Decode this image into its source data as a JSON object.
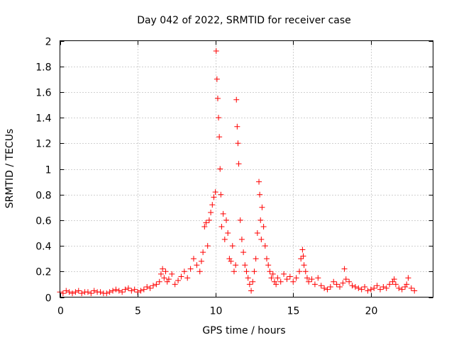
{
  "chart_data": {
    "type": "scatter",
    "title": "Day 042 of 2022, SRMTID for receiver case",
    "xlabel": "GPS time / hours",
    "ylabel": "SRMTID / TECUs",
    "xlim": [
      0,
      24
    ],
    "ylim": [
      0,
      2
    ],
    "xticks": [
      "0",
      "5",
      "10",
      "15",
      "20"
    ],
    "xtick_values": [
      0,
      5,
      10,
      15,
      20
    ],
    "yticks": [
      "0",
      "0.2",
      "0.4",
      "0.6",
      "0.8",
      "1",
      "1.2",
      "1.4",
      "1.6",
      "1.8",
      "2"
    ],
    "ytick_values": [
      0,
      0.2,
      0.4,
      0.6,
      0.8,
      1.0,
      1.2,
      1.4,
      1.6,
      1.8,
      2.0
    ],
    "grid": true,
    "marker": "+",
    "color": "#ff0000",
    "series": [
      {
        "name": "SRMTID",
        "x": [
          0.0,
          0.2,
          0.4,
          0.6,
          0.8,
          1.0,
          1.2,
          1.4,
          1.6,
          1.8,
          2.0,
          2.2,
          2.4,
          2.6,
          2.8,
          3.0,
          3.2,
          3.4,
          3.6,
          3.8,
          4.0,
          4.2,
          4.4,
          4.6,
          4.8,
          5.0,
          5.2,
          5.4,
          5.6,
          5.8,
          6.0,
          6.2,
          6.4,
          6.5,
          6.6,
          6.7,
          6.8,
          6.9,
          7.0,
          7.2,
          7.4,
          7.6,
          7.8,
          8.0,
          8.2,
          8.4,
          8.6,
          8.8,
          9.0,
          9.1,
          9.2,
          9.3,
          9.4,
          9.5,
          9.6,
          9.7,
          9.8,
          9.9,
          10.0,
          10.05,
          10.1,
          10.15,
          10.2,
          10.25,
          10.3,
          10.35,
          10.4,
          10.5,
          10.6,
          10.7,
          10.8,
          10.9,
          11.0,
          11.1,
          11.2,
          11.3,
          11.35,
          11.4,
          11.45,
          11.5,
          11.6,
          11.7,
          11.8,
          11.9,
          12.0,
          12.1,
          12.2,
          12.3,
          12.4,
          12.5,
          12.6,
          12.7,
          12.8,
          12.85,
          12.9,
          12.95,
          13.0,
          13.1,
          13.2,
          13.3,
          13.4,
          13.5,
          13.6,
          13.7,
          13.8,
          13.9,
          14.0,
          14.2,
          14.4,
          14.6,
          14.8,
          15.0,
          15.2,
          15.4,
          15.5,
          15.6,
          15.65,
          15.7,
          15.8,
          15.9,
          16.0,
          16.2,
          16.4,
          16.6,
          16.8,
          17.0,
          17.2,
          17.4,
          17.6,
          17.8,
          18.0,
          18.2,
          18.3,
          18.4,
          18.6,
          18.8,
          19.0,
          19.2,
          19.4,
          19.6,
          19.8,
          20.0,
          20.2,
          20.4,
          20.6,
          20.8,
          21.0,
          21.2,
          21.4,
          21.5,
          21.6,
          21.8,
          22.0,
          22.2,
          22.3,
          22.4,
          22.6,
          22.8
        ],
        "y": [
          0.04,
          0.03,
          0.05,
          0.04,
          0.03,
          0.04,
          0.05,
          0.03,
          0.04,
          0.04,
          0.03,
          0.05,
          0.04,
          0.04,
          0.03,
          0.03,
          0.04,
          0.05,
          0.06,
          0.05,
          0.04,
          0.06,
          0.07,
          0.05,
          0.06,
          0.04,
          0.05,
          0.06,
          0.08,
          0.07,
          0.09,
          0.1,
          0.12,
          0.18,
          0.22,
          0.15,
          0.2,
          0.12,
          0.14,
          0.18,
          0.1,
          0.13,
          0.16,
          0.2,
          0.15,
          0.22,
          0.3,
          0.25,
          0.2,
          0.28,
          0.35,
          0.55,
          0.58,
          0.4,
          0.6,
          0.66,
          0.72,
          0.78,
          0.82,
          1.92,
          1.7,
          1.55,
          1.4,
          1.25,
          1.0,
          0.8,
          0.55,
          0.65,
          0.45,
          0.6,
          0.5,
          0.3,
          0.28,
          0.4,
          0.2,
          0.25,
          1.54,
          1.33,
          1.2,
          1.04,
          0.6,
          0.45,
          0.35,
          0.25,
          0.2,
          0.15,
          0.1,
          0.05,
          0.12,
          0.2,
          0.3,
          0.5,
          0.9,
          0.8,
          0.6,
          0.45,
          0.7,
          0.55,
          0.4,
          0.3,
          0.25,
          0.2,
          0.15,
          0.18,
          0.12,
          0.1,
          0.15,
          0.12,
          0.18,
          0.14,
          0.16,
          0.12,
          0.15,
          0.2,
          0.3,
          0.37,
          0.32,
          0.25,
          0.2,
          0.15,
          0.12,
          0.14,
          0.1,
          0.15,
          0.09,
          0.07,
          0.06,
          0.08,
          0.12,
          0.1,
          0.08,
          0.11,
          0.22,
          0.14,
          0.12,
          0.09,
          0.08,
          0.07,
          0.06,
          0.08,
          0.05,
          0.06,
          0.07,
          0.09,
          0.06,
          0.08,
          0.07,
          0.1,
          0.12,
          0.14,
          0.1,
          0.07,
          0.06,
          0.08,
          0.1,
          0.15,
          0.07,
          0.05
        ]
      }
    ]
  }
}
